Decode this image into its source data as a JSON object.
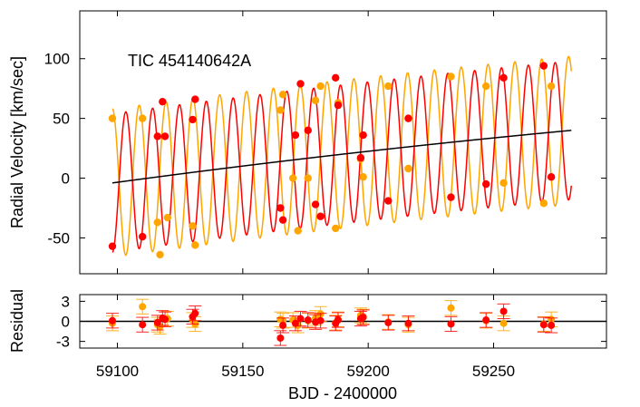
{
  "chart_data": {
    "type": "scatter",
    "title": "TIC 454140642A",
    "xlabel": "BJD - 2400000",
    "ylabel_main": "Radial Velocity [km/sec]",
    "ylabel_resid": "Residual",
    "xlim": [
      59085,
      59295
    ],
    "ylim_main": [
      -80,
      140
    ],
    "ylim_resid": [
      -4,
      4
    ],
    "x_ticks": [
      59100,
      59150,
      59200,
      59250
    ],
    "y_ticks_main": [
      -50,
      0,
      50,
      100
    ],
    "y_ticks_resid": [
      -3,
      0,
      3
    ],
    "colors": {
      "primary": "#ff0000",
      "secondary": "#ffa500",
      "systemic": "#000000",
      "border": "#000000"
    },
    "model": {
      "x_start": 59098,
      "x_end": 59281,
      "period_days": 10.7,
      "primary_amplitude": 58,
      "secondary_amplitude": 62,
      "trend_start": -4,
      "trend_end": 40,
      "trend_curvature": 8
    },
    "series": [
      {
        "color": "primary",
        "x": [
          59098,
          59110,
          59116,
          59118,
          59119,
          59130,
          59131,
          59165,
          59166,
          59171,
          59173,
          59176,
          59179,
          59181,
          59187,
          59188,
          59197,
          59198,
          59208,
          59216,
          59233,
          59247,
          59254,
          59270,
          59273
        ],
        "y": [
          -57,
          -49,
          35,
          64,
          35,
          49,
          66,
          -25,
          -35,
          36,
          79,
          40,
          -22,
          -32,
          84,
          61,
          17,
          36,
          -19,
          50,
          -16,
          -5,
          84,
          94,
          1
        ],
        "residual": [
          0.1,
          -0.5,
          -0.2,
          0.5,
          0.3,
          0.7,
          1.2,
          -2.5,
          -0.6,
          -0.3,
          0.4,
          0.2,
          -0.1,
          0.1,
          -0.3,
          0.2,
          0.4,
          0.6,
          -0.2,
          -0.3,
          -0.4,
          0.2,
          1.5,
          -0.5,
          -0.6
        ]
      },
      {
        "color": "secondary",
        "x": [
          59098,
          59110,
          59116,
          59117,
          59120,
          59130,
          59131,
          59165,
          59166,
          59170,
          59172,
          59176,
          59179,
          59181,
          59187,
          59188,
          59197,
          59198,
          59208,
          59216,
          59233,
          59247,
          59254,
          59270,
          59273
        ],
        "y": [
          50,
          50,
          -37,
          -64,
          -33,
          -40,
          -56,
          57,
          70,
          0,
          -44,
          0,
          65,
          77,
          -42,
          63,
          16,
          1,
          77,
          8,
          85,
          77,
          -4,
          -21,
          77
        ],
        "residual": [
          -0.3,
          2.2,
          -0.5,
          -0.8,
          0.4,
          0.2,
          -0.4,
          0.3,
          0.1,
          0.2,
          -0.6,
          0.1,
          0.5,
          1.1,
          -0.2,
          0.3,
          0.9,
          0.7,
          -0.1,
          -0.5,
          2.0,
          0.1,
          -0.3,
          -0.4,
          0.3
        ]
      }
    ]
  }
}
